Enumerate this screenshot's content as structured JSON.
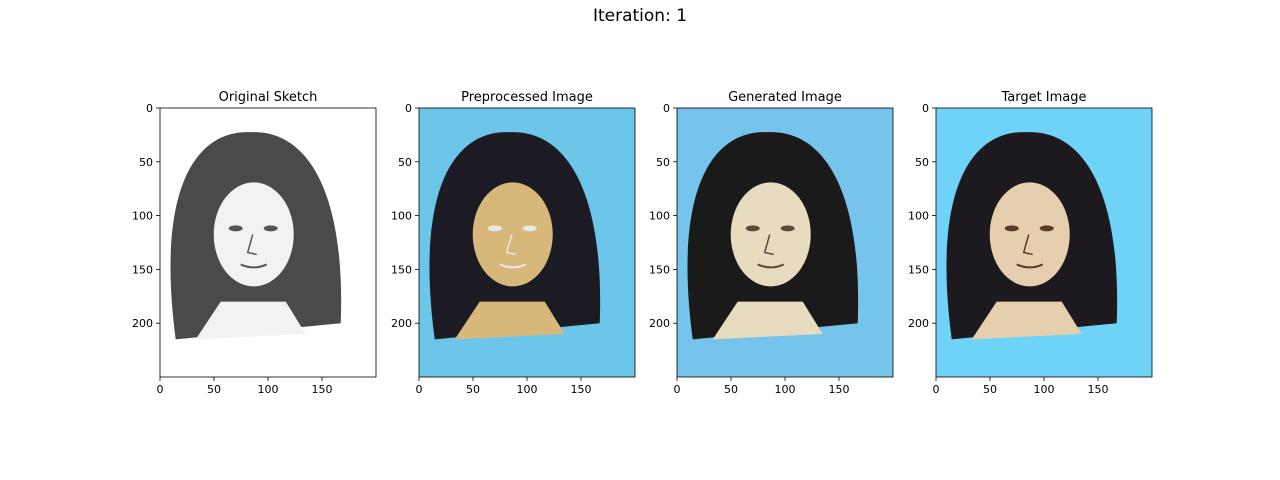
{
  "figure": {
    "title": "Iteration: 1"
  },
  "chart_data": [
    {
      "type": "image",
      "title": "Original Sketch",
      "content": "pencil sketch of a woman's face with shoulder-length dark hair",
      "xlim": [
        0,
        200
      ],
      "ylim": [
        250,
        0
      ],
      "xticks": [
        0,
        50,
        100,
        150
      ],
      "yticks": [
        0,
        50,
        100,
        150,
        200
      ],
      "palette": {
        "bg": "#ffffff",
        "hair": "#4a4a4a",
        "skin": "#f2f2f2",
        "line": "#555555"
      }
    },
    {
      "type": "image",
      "title": "Preprocessed Image",
      "content": "colorized sketch with light blue noisy background, dark hair, tan skin and white outlines",
      "xlim": [
        0,
        200
      ],
      "ylim": [
        250,
        0
      ],
      "xticks": [
        0,
        50,
        100,
        150
      ],
      "yticks": [
        0,
        50,
        100,
        150,
        200
      ],
      "palette": {
        "bg": "#6cc6ea",
        "hair": "#1c1a22",
        "skin": "#d8b77a",
        "line": "#e8e8e8"
      }
    },
    {
      "type": "image",
      "title": "Generated Image",
      "content": "blurry generated photo of a face on light blue background",
      "xlim": [
        0,
        200
      ],
      "ylim": [
        250,
        0
      ],
      "xticks": [
        0,
        50,
        100,
        150
      ],
      "yticks": [
        0,
        50,
        100,
        150,
        200
      ],
      "palette": {
        "bg": "#76c4ec",
        "hair": "#1a1a1a",
        "skin": "#e8dcc0",
        "line": "#5a4a3a"
      }
    },
    {
      "type": "image",
      "title": "Target Image",
      "content": "photo of a woman with shoulder-length dark hair on blue background",
      "xlim": [
        0,
        200
      ],
      "ylim": [
        250,
        0
      ],
      "xticks": [
        0,
        50,
        100,
        150
      ],
      "yticks": [
        0,
        50,
        100,
        150,
        200
      ],
      "palette": {
        "bg": "#6ed3f7",
        "hair": "#1c1a1e",
        "skin": "#e6cfae",
        "line": "#5a3a2a"
      }
    }
  ]
}
